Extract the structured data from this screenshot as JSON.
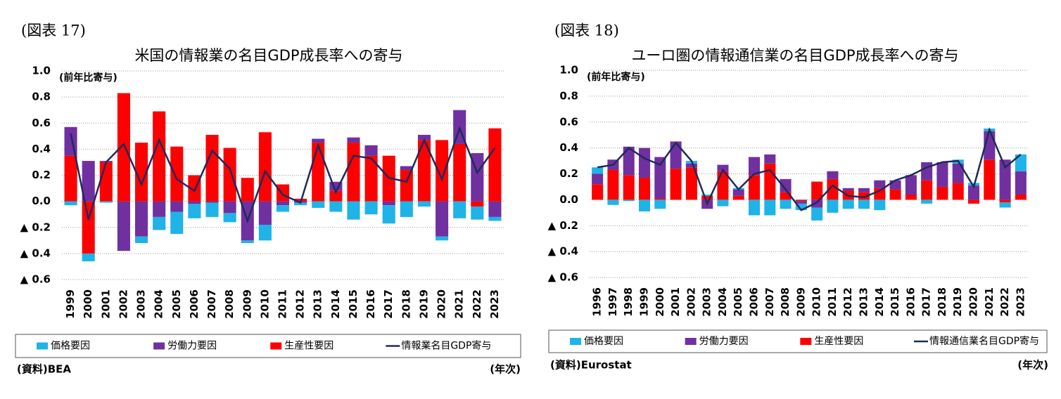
{
  "chart_data": [
    {
      "type": "bar",
      "figure_label": "(図表 17)",
      "title": "米国の情報業の名目GDP成長率への寄与",
      "y_label": "(前年比寄与)",
      "source": "(資料)BEA",
      "x_unit": "(年次)",
      "categories": [
        "1999",
        "2000",
        "2001",
        "2002",
        "2003",
        "2004",
        "2005",
        "2006",
        "2007",
        "2008",
        "2009",
        "2010",
        "2011",
        "2012",
        "2013",
        "2014",
        "2015",
        "2016",
        "2017",
        "2018",
        "2019",
        "2020",
        "2021",
        "2022",
        "2023"
      ],
      "series": [
        {
          "name": "価格要因",
          "type": "bar",
          "color": "#1fb3e8",
          "values": [
            -0.03,
            -0.06,
            -0.01,
            0,
            -0.05,
            -0.1,
            -0.17,
            -0.11,
            -0.11,
            -0.07,
            -0.02,
            -0.12,
            -0.05,
            -0.02,
            -0.05,
            -0.08,
            -0.14,
            -0.1,
            -0.14,
            -0.12,
            -0.04,
            -0.03,
            -0.13,
            -0.1,
            -0.03
          ]
        },
        {
          "name": "労働力要因",
          "type": "bar",
          "color": "#7030a0",
          "values": [
            0.22,
            0.31,
            0.01,
            -0.38,
            -0.27,
            -0.12,
            -0.08,
            -0.02,
            -0.01,
            -0.09,
            -0.3,
            -0.18,
            -0.03,
            -0.01,
            0.03,
            0.07,
            0.04,
            0.08,
            -0.03,
            0.03,
            0.04,
            -0.27,
            0.26,
            0.37,
            -0.12
          ]
        },
        {
          "name": "生産性要因",
          "type": "bar",
          "color": "#ff0000",
          "values": [
            0.35,
            -0.4,
            0.3,
            0.83,
            0.45,
            0.69,
            0.42,
            0.2,
            0.51,
            0.41,
            0.18,
            0.53,
            0.13,
            0.02,
            0.45,
            0.08,
            0.45,
            0.35,
            0.35,
            0.24,
            0.47,
            0.47,
            0.44,
            -0.04,
            0.56
          ]
        },
        {
          "name": "情報業名目GDP寄与",
          "type": "line",
          "color": "#1f2a5c",
          "values": [
            0.52,
            -0.14,
            0.3,
            0.44,
            0.13,
            0.47,
            0.17,
            0.08,
            0.39,
            0.25,
            -0.15,
            0.23,
            0.05,
            -0.01,
            0.43,
            0.07,
            0.35,
            0.33,
            0.18,
            0.15,
            0.47,
            0.17,
            0.56,
            0.22,
            0.41
          ]
        }
      ],
      "ylim": [
        -0.6,
        1.0
      ],
      "yticks": [
        {
          "value": 1.0,
          "label": "1.0"
        },
        0.8,
        0.6,
        0.4,
        0.2,
        {
          "value": 0,
          "label": "0.0"
        },
        {
          "value": -0.2,
          "label": "▲ 0.2"
        },
        {
          "value": -0.4,
          "label": "▲ 0.4"
        },
        {
          "value": -0.6,
          "label": "▲ 0.6"
        }
      ],
      "grid": true
    },
    {
      "type": "bar",
      "figure_label": "(図表 18)",
      "title": "ユーロ圏の情報通信業の名目GDP成長率への寄与",
      "y_label": "(前年比寄与)",
      "source": "(資料)Eurostat",
      "x_unit": "(年次)",
      "categories": [
        "1996",
        "1997",
        "1998",
        "1999",
        "2000",
        "2001",
        "2002",
        "2003",
        "2004",
        "2005",
        "2006",
        "2007",
        "2008",
        "2009",
        "2010",
        "2011",
        "2012",
        "2013",
        "2014",
        "2015",
        "2016",
        "2017",
        "2018",
        "2019",
        "2020",
        "2021",
        "2022",
        "2023"
      ],
      "series": [
        {
          "name": "価格要因",
          "type": "bar",
          "color": "#1fb3e8",
          "values": [
            0.05,
            -0.04,
            -0.01,
            -0.09,
            -0.07,
            0,
            0.02,
            0.01,
            -0.05,
            0.01,
            -0.12,
            -0.12,
            -0.07,
            -0.05,
            -0.1,
            -0.1,
            -0.07,
            -0.07,
            -0.08,
            0,
            0,
            -0.03,
            0,
            0.03,
            0.02,
            0.02,
            -0.04,
            0.13
          ]
        },
        {
          "name": "労働力要因",
          "type": "bar",
          "color": "#7030a0",
          "values": [
            0.08,
            0.08,
            0.22,
            0.23,
            0.32,
            0.21,
            0.03,
            -0.07,
            0.05,
            0.05,
            0.14,
            0.07,
            0.1,
            -0.02,
            -0.06,
            0.06,
            0.02,
            0.03,
            0.06,
            0.07,
            0.15,
            0.14,
            0.19,
            0.15,
            0.11,
            0.22,
            0.31,
            0.18
          ]
        },
        {
          "name": "生産性要因",
          "type": "bar",
          "color": "#ff0000",
          "values": [
            0.12,
            0.23,
            0.19,
            0.17,
            0.01,
            0.24,
            0.25,
            0.03,
            0.22,
            0.03,
            0.19,
            0.28,
            0.06,
            -0.01,
            0.14,
            0.16,
            0.07,
            0.06,
            0.09,
            0.08,
            0.04,
            0.15,
            0.1,
            0.13,
            -0.03,
            0.31,
            -0.02,
            0.04
          ]
        },
        {
          "name": "情報通信業名目GDP寄与",
          "type": "line",
          "color": "#1f2a5c",
          "values": [
            0.25,
            0.27,
            0.4,
            0.32,
            0.27,
            0.44,
            0.3,
            -0.03,
            0.23,
            0.08,
            0.2,
            0.23,
            0.08,
            -0.08,
            -0.02,
            0.11,
            0.03,
            0.02,
            0.07,
            0.15,
            0.19,
            0.25,
            0.29,
            0.3,
            0.1,
            0.54,
            0.25,
            0.35
          ]
        }
      ],
      "ylim": [
        -0.6,
        1.0
      ],
      "yticks": [
        {
          "value": 1.0,
          "label": "1.0"
        },
        0.8,
        0.6,
        0.4,
        0.2,
        {
          "value": 0,
          "label": "0.0"
        },
        {
          "value": -0.2,
          "label": "▲ 0.2"
        },
        {
          "value": -0.4,
          "label": "▲ 0.4"
        },
        {
          "value": -0.6,
          "label": "▲ 0.6"
        }
      ],
      "grid": true
    }
  ]
}
